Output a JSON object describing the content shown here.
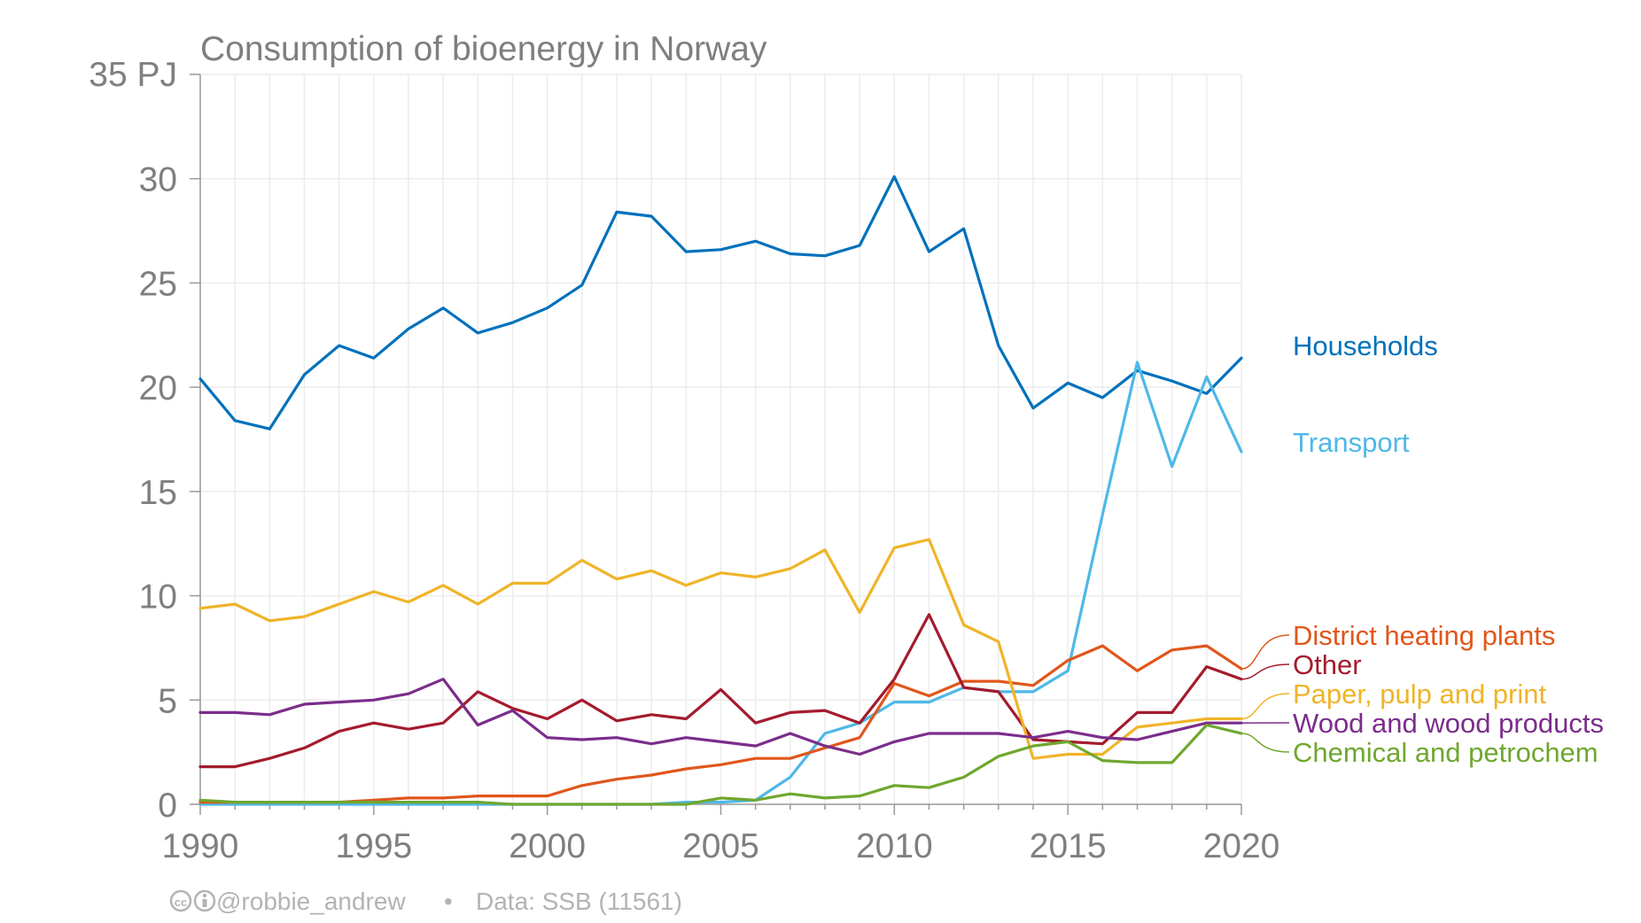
{
  "chart_data": {
    "type": "line",
    "title": "Consumption of bioenergy in Norway",
    "xlabel": "",
    "ylabel": "",
    "unit_label": "35 PJ",
    "xlim": [
      1990,
      2020
    ],
    "ylim": [
      0,
      35
    ],
    "x_ticks": [
      "1990",
      "1995",
      "2000",
      "2005",
      "2010",
      "2015",
      "2020"
    ],
    "y_ticks": [
      "0",
      "5",
      "10",
      "15",
      "20",
      "25",
      "30"
    ],
    "grid": true,
    "legend": "inline-right",
    "x": [
      1990,
      1991,
      1992,
      1993,
      1994,
      1995,
      1996,
      1997,
      1998,
      1999,
      2000,
      2001,
      2002,
      2003,
      2004,
      2005,
      2006,
      2007,
      2008,
      2009,
      2010,
      2011,
      2012,
      2013,
      2014,
      2015,
      2016,
      2017,
      2018,
      2019,
      2020
    ],
    "series": [
      {
        "name": "Households",
        "color": "#0071bc",
        "values": [
          20.4,
          18.4,
          18.0,
          20.6,
          22.0,
          21.4,
          22.8,
          23.8,
          22.6,
          23.1,
          23.8,
          24.9,
          28.4,
          28.2,
          26.5,
          26.6,
          27.0,
          26.4,
          26.3,
          26.8,
          30.1,
          26.5,
          27.6,
          22.0,
          19.0,
          20.2,
          19.5,
          20.8,
          20.3,
          19.7,
          21.4
        ]
      },
      {
        "name": "Transport",
        "color": "#4eb8e8",
        "values": [
          0,
          0,
          0,
          0,
          0,
          0,
          0,
          0,
          0,
          0,
          0,
          0,
          0,
          0,
          0.1,
          0.1,
          0.2,
          1.3,
          3.4,
          3.9,
          4.9,
          4.9,
          5.6,
          5.4,
          5.4,
          6.4,
          13.9,
          21.2,
          16.2,
          20.5,
          16.9
        ]
      },
      {
        "name": "District heating plants",
        "color": "#e0561b",
        "values": [
          0.1,
          0.1,
          0.1,
          0.1,
          0.1,
          0.2,
          0.3,
          0.3,
          0.4,
          0.4,
          0.4,
          0.9,
          1.2,
          1.4,
          1.7,
          1.9,
          2.2,
          2.2,
          2.7,
          3.2,
          5.8,
          5.2,
          5.9,
          5.9,
          5.7,
          6.9,
          7.6,
          6.4,
          7.4,
          7.6,
          6.5
        ]
      },
      {
        "name": "Other",
        "color": "#a41b2d",
        "values": [
          1.8,
          1.8,
          2.2,
          2.7,
          3.5,
          3.9,
          3.6,
          3.9,
          5.4,
          4.6,
          4.1,
          5.0,
          4.0,
          4.3,
          4.1,
          5.5,
          3.9,
          4.4,
          4.5,
          3.9,
          6.0,
          9.1,
          5.6,
          5.4,
          3.1,
          3.0,
          2.9,
          4.4,
          4.4,
          6.6,
          6.0
        ]
      },
      {
        "name": "Paper, pulp and print",
        "color": "#f0b429",
        "values": [
          9.4,
          9.6,
          8.8,
          9.0,
          9.6,
          10.2,
          9.7,
          10.5,
          9.6,
          10.6,
          10.6,
          11.7,
          10.8,
          11.2,
          10.5,
          11.1,
          10.9,
          11.3,
          12.2,
          9.2,
          12.3,
          12.7,
          8.6,
          7.8,
          2.2,
          2.4,
          2.4,
          3.7,
          3.9,
          4.1,
          4.1
        ]
      },
      {
        "name": "Wood and wood products",
        "color": "#7b2d8b",
        "values": [
          4.4,
          4.4,
          4.3,
          4.8,
          4.9,
          5.0,
          5.3,
          6.0,
          3.8,
          4.5,
          3.2,
          3.1,
          3.2,
          2.9,
          3.2,
          3.0,
          2.8,
          3.4,
          2.8,
          2.4,
          3.0,
          3.4,
          3.4,
          3.4,
          3.2,
          3.5,
          3.2,
          3.1,
          3.5,
          3.9,
          3.9
        ]
      },
      {
        "name": "Chemical and petrochem",
        "color": "#6fa72f",
        "values": [
          0.2,
          0.1,
          0.1,
          0.1,
          0.1,
          0.1,
          0.1,
          0.1,
          0.1,
          0,
          0,
          0,
          0,
          0,
          0,
          0.3,
          0.2,
          0.5,
          0.3,
          0.4,
          0.9,
          0.8,
          1.3,
          2.3,
          2.8,
          3.0,
          2.1,
          2.0,
          2.0,
          3.8,
          3.4
        ]
      }
    ]
  },
  "footer": {
    "credit": "@robbie_andrew",
    "separator": "•",
    "source": "Data: SSB (11561)"
  }
}
